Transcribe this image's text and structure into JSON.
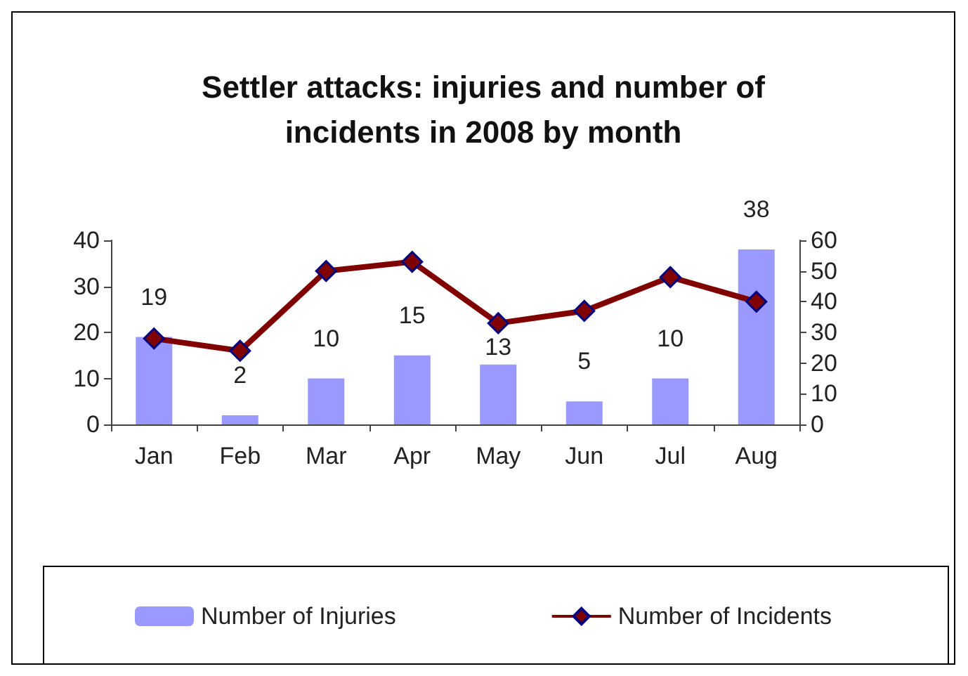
{
  "chart_data": {
    "type": "bar",
    "title": "Settler attacks: injuries and number of\nincidents in 2008 by month",
    "categories": [
      "Jan",
      "Feb",
      "Mar",
      "Apr",
      "May",
      "Jun",
      "Jul",
      "Aug"
    ],
    "series": [
      {
        "name": "Number of Injuries",
        "color": "#9999ff",
        "values": [
          19,
          2,
          10,
          15,
          13,
          5,
          10,
          38
        ],
        "data_labels": true
      },
      {
        "name": "Number of Incidents",
        "type": "line",
        "axis": "y2",
        "color": "#800000",
        "values": [
          28,
          24,
          50,
          53,
          33,
          37,
          48,
          40
        ],
        "marker": "diamond"
      }
    ],
    "ylim": [
      0,
      40
    ],
    "yticks": [
      0,
      10,
      20,
      30,
      40
    ],
    "y2lim": [
      0,
      60
    ],
    "y2ticks": [
      0,
      10,
      20,
      30,
      40,
      50,
      60
    ],
    "grid": false,
    "legend": "bottom"
  }
}
